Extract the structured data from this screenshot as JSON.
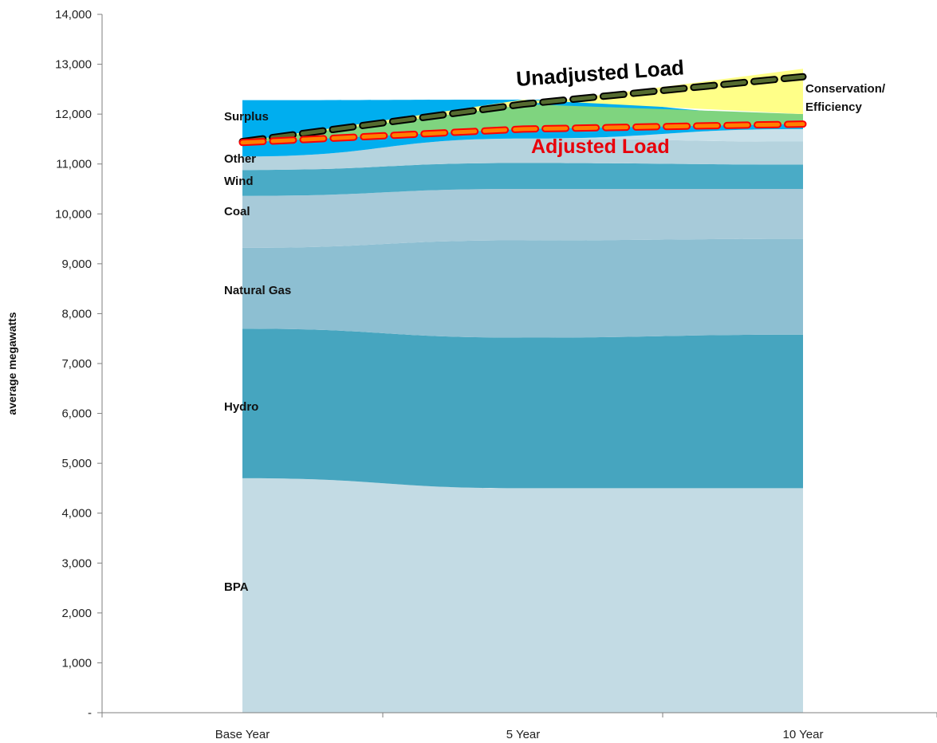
{
  "chart_data": {
    "type": "area",
    "ylabel": "average megawatts",
    "xlabel": "",
    "ylim": [
      0,
      14000
    ],
    "y_ticks": [
      {
        "value": 0,
        "label": "-"
      },
      {
        "value": 1000,
        "label": "1,000"
      },
      {
        "value": 2000,
        "label": "2,000"
      },
      {
        "value": 3000,
        "label": "3,000"
      },
      {
        "value": 4000,
        "label": "4,000"
      },
      {
        "value": 5000,
        "label": "5,000"
      },
      {
        "value": 6000,
        "label": "6,000"
      },
      {
        "value": 7000,
        "label": "7,000"
      },
      {
        "value": 8000,
        "label": "8,000"
      },
      {
        "value": 9000,
        "label": "9,000"
      },
      {
        "value": 10000,
        "label": "10,000"
      },
      {
        "value": 11000,
        "label": "11,000"
      },
      {
        "value": 12000,
        "label": "12,000"
      },
      {
        "value": 13000,
        "label": "13,000"
      },
      {
        "value": 14000,
        "label": "14,000"
      }
    ],
    "categories": [
      "Base Year",
      "5 Year",
      "10 Year"
    ],
    "stacked": true,
    "series": [
      {
        "name": "BPA",
        "values": [
          4700,
          4500,
          4500
        ],
        "color": "#c3dbe4"
      },
      {
        "name": "Hydro",
        "values": [
          3000,
          3020,
          3080
        ],
        "color": "#46a5bf"
      },
      {
        "name": "Natural Gas",
        "values": [
          1620,
          1950,
          1920
        ],
        "color": "#8dbfd2"
      },
      {
        "name": "Coal",
        "values": [
          1040,
          1030,
          1000
        ],
        "color": "#a7cad9"
      },
      {
        "name": "Wind",
        "values": [
          520,
          520,
          490
        ],
        "color": "#4aabc6"
      },
      {
        "name": "Other",
        "values": [
          270,
          490,
          460
        ],
        "color": "#b5d3de"
      },
      {
        "name": "",
        "values": [
          0,
          0,
          250
        ],
        "color": "#c8e0e9"
      },
      {
        "name": "Surplus",
        "values": [
          1130,
          780,
          300
        ],
        "color": "#00aeef"
      }
    ],
    "loads": [
      {
        "name": "Unadjusted Load",
        "values": [
          11450,
          12200,
          12750
        ],
        "color": "#000000",
        "label_color": "#000000"
      },
      {
        "name": "Adjusted Load",
        "values": [
          11430,
          11700,
          11800
        ],
        "color": "#ff0000",
        "label_color": "#e8000b"
      }
    ],
    "conservation_label": [
      "Conservation/",
      "Efficiency"
    ],
    "colors": {
      "conservation_fill": "#ffff88",
      "overlap_fill": "#7fd47f",
      "axis": "#7f7f7f"
    }
  }
}
